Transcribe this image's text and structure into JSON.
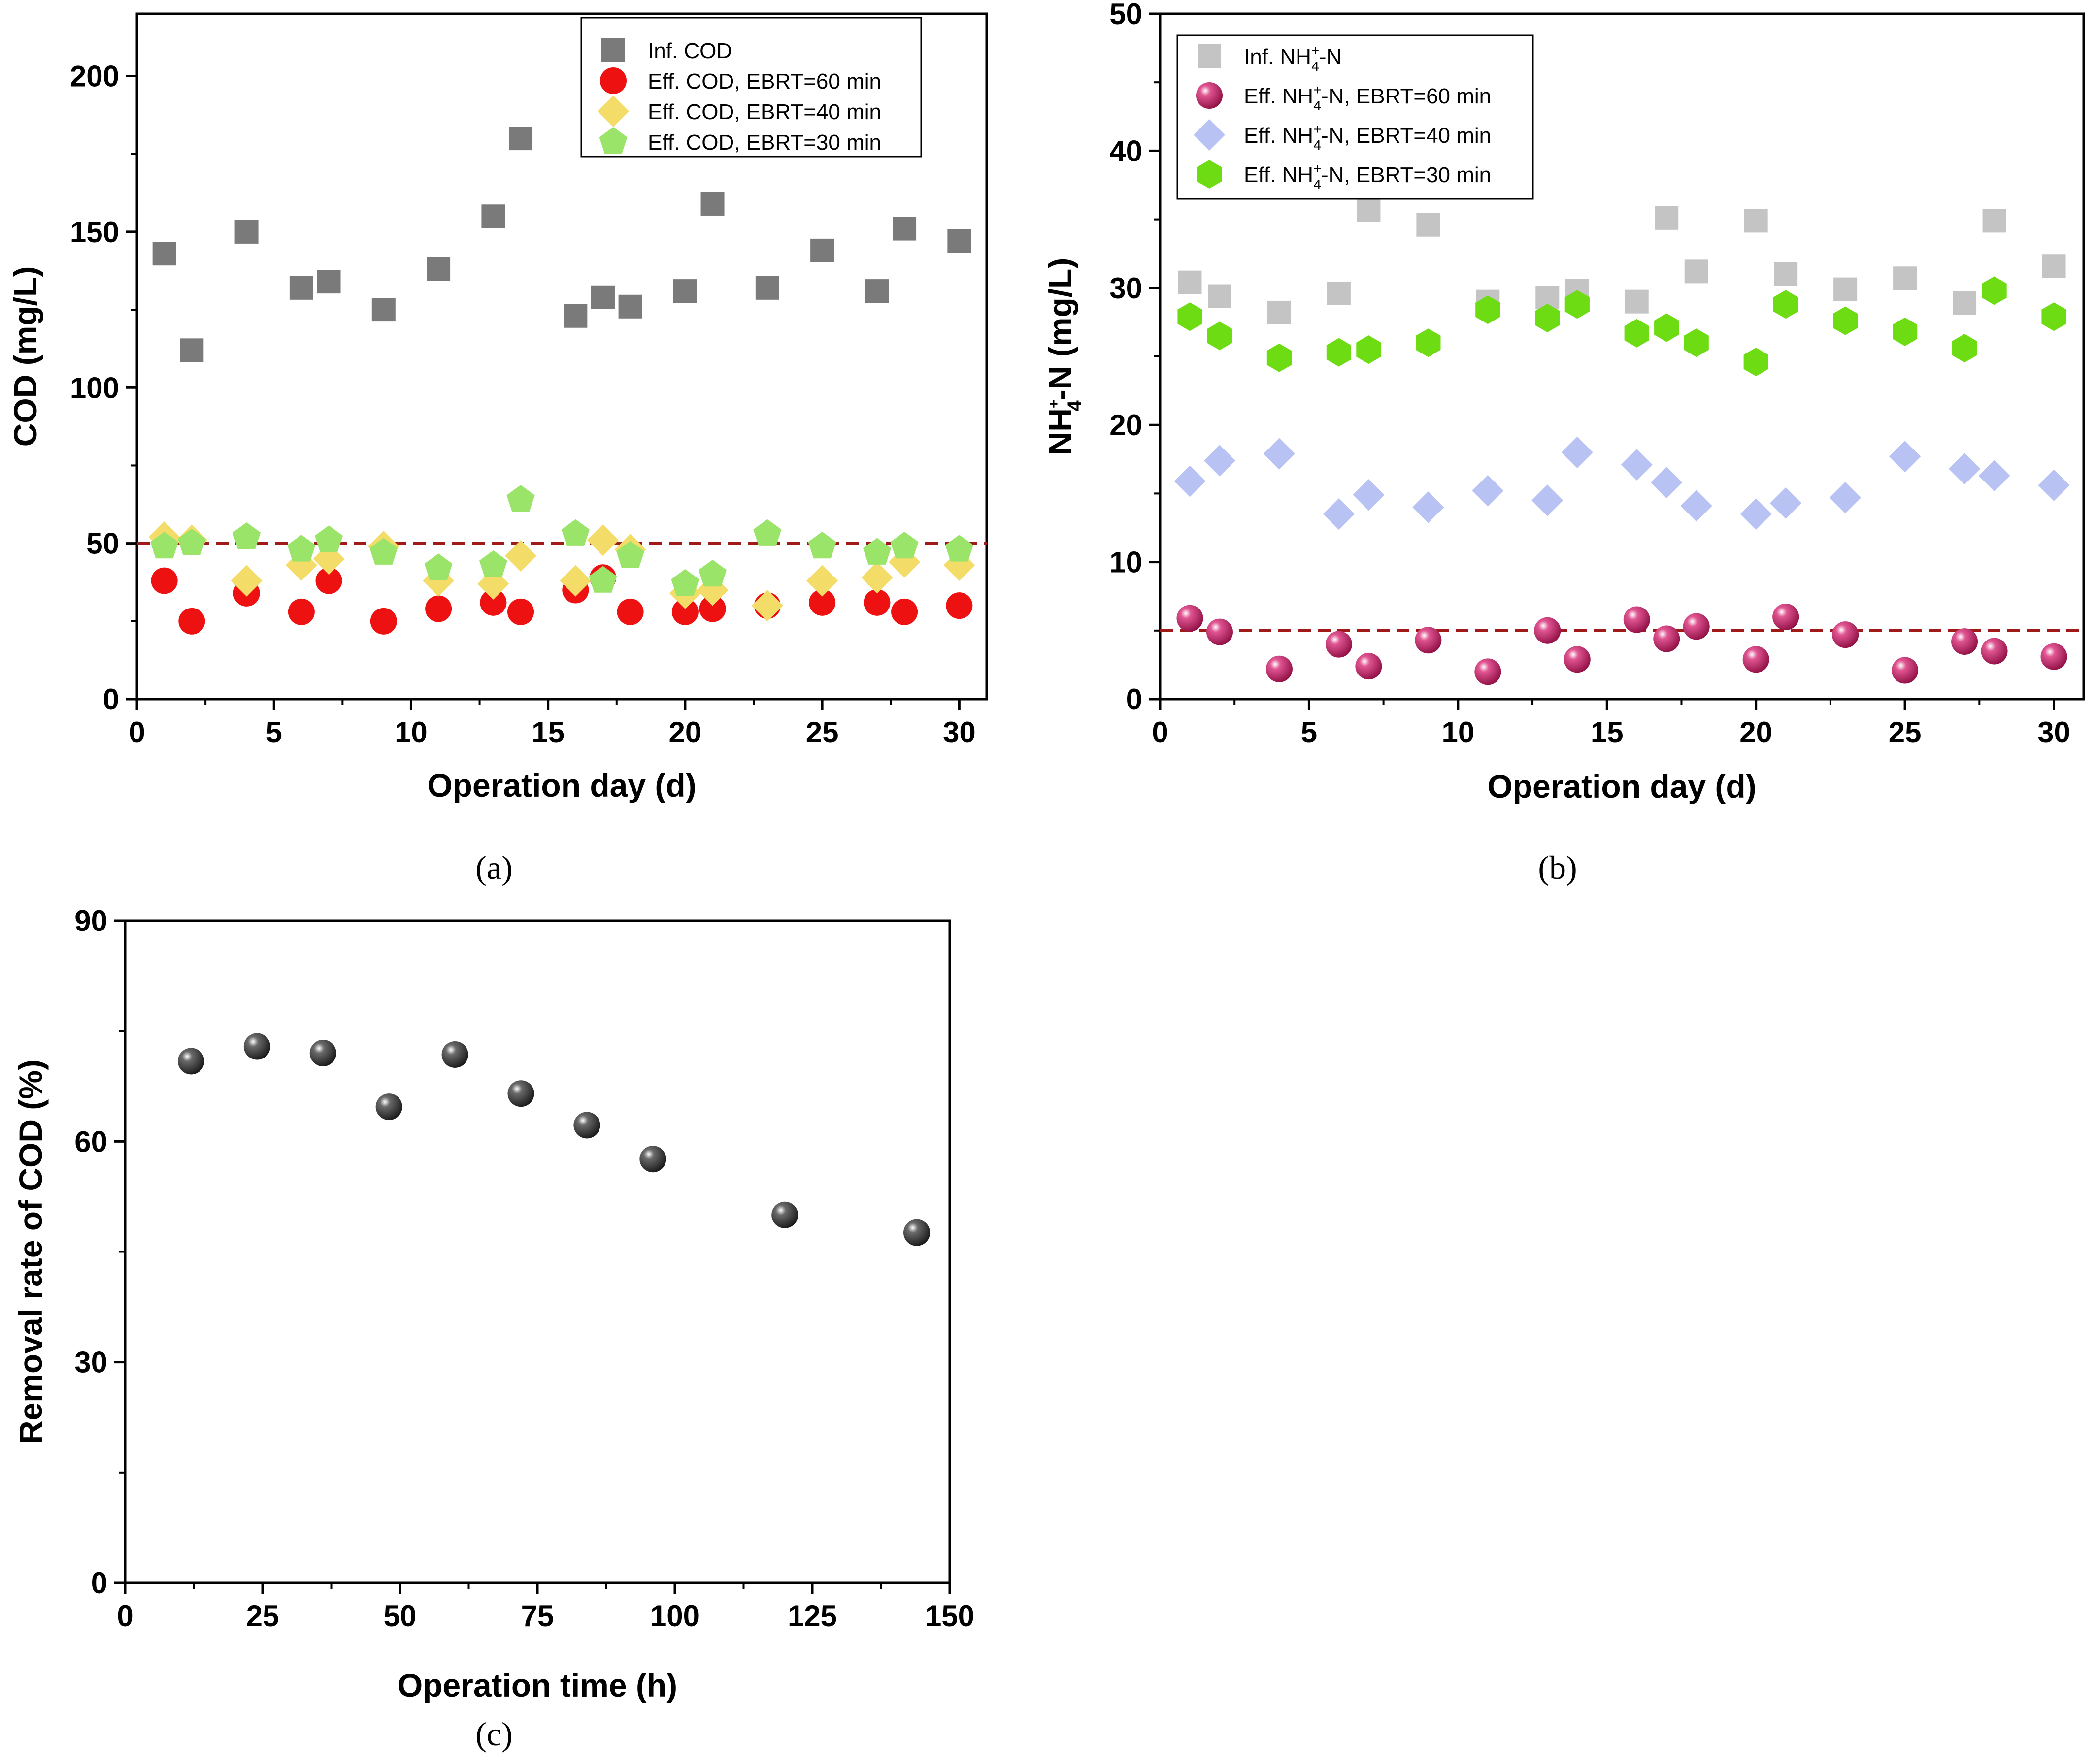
{
  "chart_data": [
    {
      "id": "a",
      "type": "scatter",
      "caption": "(a)",
      "xlabel": "Operation day (d)",
      "ylabel": "COD  (mg/L)",
      "xlim": [
        0,
        31
      ],
      "ylim": [
        0,
        220
      ],
      "xticks": [
        0,
        5,
        10,
        15,
        20,
        25,
        30
      ],
      "yticks": [
        0,
        50,
        100,
        150,
        200
      ],
      "xminor": [
        2.5,
        7.5,
        12.5,
        17.5,
        22.5,
        27.5
      ],
      "yminor": [
        25,
        75,
        125,
        175
      ],
      "reference_line": 50,
      "legend_position": "top-right",
      "series": [
        {
          "name": "Inf. COD",
          "marker": "square",
          "color": "#7a7a7a",
          "x": [
            1,
            2,
            4,
            6,
            7,
            9,
            11,
            13,
            14,
            16,
            17,
            18,
            20,
            21,
            23,
            25,
            27,
            28,
            30
          ],
          "y": [
            143,
            112,
            150,
            132,
            134,
            125,
            138,
            155,
            180,
            123,
            129,
            126,
            131,
            159,
            132,
            144,
            131,
            151,
            147
          ]
        },
        {
          "name": "Eff. COD, EBRT=60 min",
          "marker": "circle",
          "color": "#ee1111",
          "x": [
            1,
            2,
            4,
            6,
            7,
            9,
            11,
            13,
            14,
            16,
            17,
            18,
            20,
            21,
            23,
            25,
            27,
            28,
            30
          ],
          "y": [
            38,
            25,
            34,
            28,
            38,
            25,
            29,
            31,
            28,
            35,
            39,
            28,
            28,
            29,
            30,
            31,
            31,
            28,
            30
          ]
        },
        {
          "name": "Eff. COD, EBRT=40 min",
          "marker": "diamond",
          "color": "#f3dc67",
          "x": [
            1,
            2,
            4,
            6,
            7,
            9,
            11,
            13,
            14,
            16,
            17,
            18,
            20,
            21,
            23,
            25,
            27,
            28,
            30
          ],
          "y": [
            52,
            51,
            38,
            43,
            45,
            49,
            38,
            37,
            46,
            38,
            51,
            48,
            34,
            35,
            30,
            38,
            39,
            44,
            43
          ]
        },
        {
          "name": "Eff. COD, EBRT=30 min",
          "marker": "pentagon",
          "color": "#9ae46a",
          "x": [
            1,
            2,
            4,
            6,
            7,
            9,
            11,
            13,
            14,
            16,
            17,
            18,
            20,
            21,
            23,
            25,
            27,
            28,
            30
          ],
          "y": [
            49,
            50,
            52,
            48,
            51,
            47,
            42,
            43,
            64,
            53,
            38,
            46,
            37,
            40,
            53,
            49,
            47,
            49,
            48
          ]
        }
      ]
    },
    {
      "id": "b",
      "type": "scatter",
      "caption": "(b)",
      "xlabel": "Operation day (d)",
      "ylabel": "NH4+-N  (mg/L)",
      "ylabel_parts": {
        "base": "NH",
        "sub": "4",
        "sup": "+",
        "rest": "-N  (mg/L)"
      },
      "xlim": [
        0,
        31
      ],
      "ylim": [
        0,
        50
      ],
      "xticks": [
        0,
        5,
        10,
        15,
        20,
        25,
        30
      ],
      "yticks": [
        0,
        10,
        20,
        30,
        40,
        50
      ],
      "xminor": [
        2.5,
        7.5,
        12.5,
        17.5,
        22.5,
        27.5
      ],
      "yminor": [
        5,
        15,
        25,
        35,
        45
      ],
      "reference_line": 5,
      "legend_position": "top-left",
      "series": [
        {
          "name": "Inf. NH4+-N",
          "label_parts": {
            "pre": "Inf. NH",
            "post": "-N"
          },
          "marker": "square",
          "color": "#c4c4c4",
          "x": [
            1,
            2,
            4,
            6,
            7,
            9,
            11,
            13,
            14,
            16,
            17,
            18,
            20,
            21,
            23,
            25,
            27,
            28,
            30
          ],
          "y": [
            30.4,
            29.4,
            28.2,
            29.6,
            35.7,
            34.6,
            29.0,
            29.3,
            29.8,
            29.0,
            35.1,
            31.2,
            34.9,
            31.0,
            29.9,
            30.7,
            28.9,
            34.9,
            31.6
          ]
        },
        {
          "name": "Eff. NH4+-N, EBRT=60 min",
          "label_parts": {
            "pre": "Eff. NH",
            "post": "-N, EBRT=60 min"
          },
          "marker": "sphere",
          "color": "#c0185a",
          "x": [
            1,
            2,
            4,
            6,
            7,
            9,
            11,
            13,
            14,
            16,
            17,
            18,
            20,
            21,
            23,
            25,
            27,
            28,
            30
          ],
          "y": [
            5.9,
            4.9,
            2.2,
            4.0,
            2.4,
            4.3,
            2.0,
            5.0,
            2.9,
            5.8,
            4.4,
            5.3,
            2.9,
            6.0,
            4.7,
            2.1,
            4.2,
            3.5,
            3.1
          ]
        },
        {
          "name": "Eff. NH4+-N, EBRT=40 min",
          "label_parts": {
            "pre": "Eff. NH",
            "post": "-N, EBRT=40 min"
          },
          "marker": "diamond",
          "color": "#b8c2f3",
          "x": [
            1,
            2,
            4,
            6,
            7,
            9,
            11,
            13,
            14,
            16,
            17,
            18,
            20,
            21,
            23,
            25,
            27,
            28,
            30
          ],
          "y": [
            15.9,
            17.4,
            17.9,
            13.5,
            14.9,
            14.0,
            15.2,
            14.5,
            18.0,
            17.1,
            15.8,
            14.1,
            13.5,
            14.3,
            14.7,
            17.7,
            16.8,
            16.3,
            15.6
          ]
        },
        {
          "name": "Eff. NH4+-N, EBRT=30 min",
          "label_parts": {
            "pre": "Eff. NH",
            "post": "-N, EBRT=30 min"
          },
          "marker": "hexagon",
          "color": "#6edc12",
          "x": [
            1,
            2,
            4,
            6,
            7,
            9,
            11,
            13,
            14,
            16,
            17,
            18,
            20,
            21,
            23,
            25,
            27,
            28,
            30
          ],
          "y": [
            27.9,
            26.5,
            24.9,
            25.3,
            25.5,
            26.0,
            28.4,
            27.8,
            28.8,
            26.7,
            27.1,
            26.0,
            24.6,
            28.8,
            27.6,
            26.8,
            25.6,
            29.8,
            27.9
          ]
        }
      ]
    },
    {
      "id": "c",
      "type": "scatter",
      "caption": "(c)",
      "xlabel": "Operation time (h)",
      "ylabel": "Removal rate of COD (%)",
      "xlim": [
        0,
        150
      ],
      "ylim": [
        0,
        90
      ],
      "xticks": [
        0,
        25,
        50,
        75,
        100,
        125,
        150
      ],
      "yticks": [
        0,
        30,
        60,
        90
      ],
      "xminor": [
        12.5,
        37.5,
        62.5,
        87.5,
        112.5,
        137.5
      ],
      "yminor": [
        15,
        45,
        75
      ],
      "series": [
        {
          "name": "Removal rate of COD",
          "marker": "sphere",
          "color": "#3a3a3a",
          "x": [
            12,
            24,
            36,
            48,
            60,
            72,
            84,
            96,
            120,
            144
          ],
          "y": [
            70.9,
            72.9,
            72.0,
            64.7,
            71.8,
            66.5,
            62.2,
            57.6,
            50.0,
            47.6
          ]
        }
      ]
    }
  ]
}
